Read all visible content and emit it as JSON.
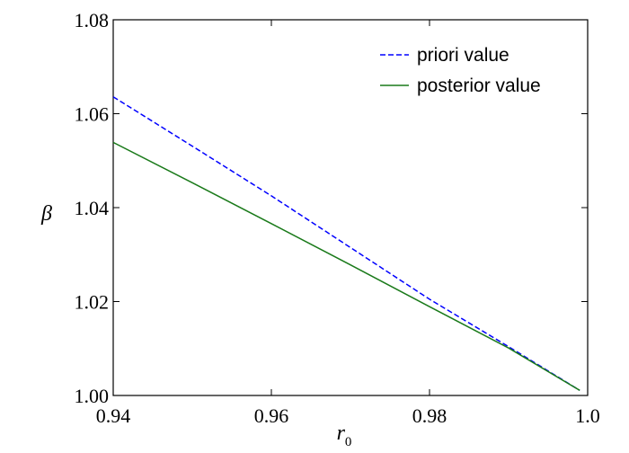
{
  "chart_data": {
    "type": "line",
    "title": "",
    "xlabel": "r",
    "xlabel_subscript": "0",
    "ylabel": "β",
    "xlim": [
      0.94,
      1.0
    ],
    "ylim": [
      1.0,
      1.08
    ],
    "xticks": [
      "0.94",
      "0.96",
      "0.98",
      "1.0"
    ],
    "yticks": [
      "1.00",
      "1.02",
      "1.04",
      "1.06",
      "1.08"
    ],
    "grid": false,
    "legend_position": "top-right",
    "series": [
      {
        "name": "priori value",
        "style": "dashed",
        "color": "#0000ff",
        "x": [
          0.94,
          0.95,
          0.96,
          0.97,
          0.98,
          0.99,
          0.999
        ],
        "y": [
          1.0636,
          1.0531,
          1.0425,
          1.0315,
          1.0205,
          1.0104,
          1.0011
        ]
      },
      {
        "name": "posterior value",
        "style": "solid",
        "color": "#1a7a1a",
        "x": [
          0.94,
          0.95,
          0.96,
          0.97,
          0.98,
          0.99,
          0.999
        ],
        "y": [
          1.0539,
          1.0453,
          1.0366,
          1.0278,
          1.0189,
          1.0101,
          1.0011
        ]
      }
    ]
  }
}
